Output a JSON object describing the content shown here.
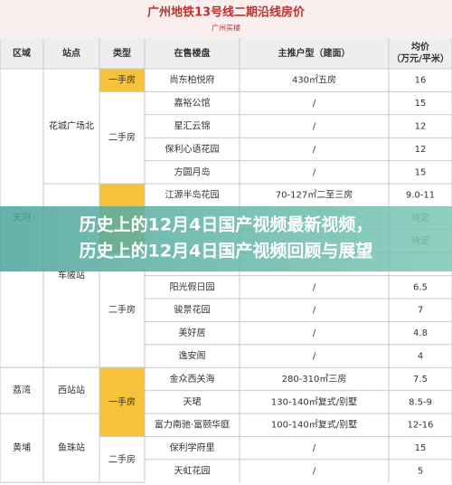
{
  "header": {
    "title": "广州地铁13号线二期沿线房价",
    "subtitle": "广州买楼"
  },
  "banner": {
    "lines": [
      "历史上的12月4日国产视频最新视频，",
      "历史上的12月4日国产视频回顾与展望"
    ]
  },
  "table": {
    "columns": [
      "区域",
      "站点",
      "类型",
      "在售楼盘",
      "主推户型（建面）",
      "均价\n（万元/平米）"
    ],
    "regions": [
      {
        "label": "天河",
        "span": 13
      },
      {
        "label": "荔湾",
        "span": 2
      },
      {
        "label": "黄埔",
        "span": 3
      }
    ],
    "stations": [
      {
        "label": "花城广场北",
        "span": 5
      },
      {
        "label": "车陂站",
        "span": 8
      },
      {
        "label": "西站站",
        "span": 2
      },
      {
        "label": "鱼珠站",
        "span": 3
      }
    ],
    "types": [
      {
        "label": "一手房",
        "span": 1,
        "new": true
      },
      {
        "label": "二手房",
        "span": 4
      },
      {
        "span": 3,
        "new": true
      },
      {
        "label": "二手房",
        "span": 5
      },
      {
        "label": "一手房",
        "span": 3,
        "new": true
      },
      {
        "label": "二手房",
        "span": 2
      }
    ],
    "rows": [
      {
        "estate": "尚东柏悦府",
        "layout": "430㎡五房",
        "price": 16
      },
      {
        "estate": "嘉裕公馆",
        "layout": "/",
        "price": 15
      },
      {
        "estate": "星汇云锦",
        "layout": "/",
        "price": 12
      },
      {
        "estate": "保利心语花园",
        "layout": "/",
        "price": 12
      },
      {
        "estate": "方圆月岛",
        "layout": "/",
        "price": 15
      },
      {
        "estate": "江源半岛花园",
        "layout": "70-127㎡二至三房",
        "price": "9.0-11"
      },
      {
        "price": "待定"
      },
      {
        "price": "待定"
      },
      {},
      {
        "estate": "阳光假日园",
        "layout": "/",
        "price": 6.5
      },
      {
        "estate": "骏景花园",
        "layout": "/",
        "price": 7
      },
      {
        "estate": "美好居",
        "layout": "/",
        "price": 4.8
      },
      {
        "estate": "逸安阁",
        "layout": "/",
        "price": 4
      },
      {
        "estate": "金众西关海",
        "layout": "280-310㎡三房",
        "price": 7.5
      },
      {
        "estate": "天珺",
        "layout": "130-140㎡复式/别墅",
        "price": "8.5-9"
      },
      {
        "estate": "富力南驰·富颐华庭",
        "layout": "100-140㎡复式/别墅",
        "price": "12-16"
      },
      {
        "estate": "保利学府里",
        "layout": "/",
        "price": 15
      },
      {
        "estate": "天虹花园",
        "layout": "/",
        "price": 5
      }
    ]
  }
}
